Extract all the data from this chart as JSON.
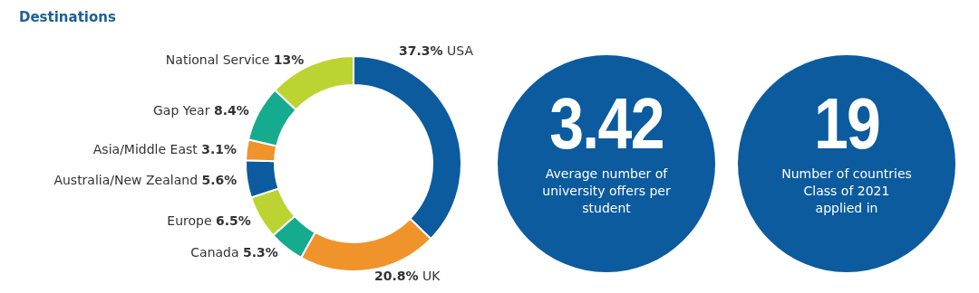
{
  "chart_data": [
    {
      "type": "donut",
      "title": "Destinations",
      "categories": [
        "USA",
        "UK",
        "Canada",
        "Europe",
        "Australia/New Zealand",
        "Asia/Middle East",
        "Gap Year",
        "National Service"
      ],
      "values": [
        37.3,
        20.8,
        5.3,
        6.5,
        5.6,
        3.1,
        8.4,
        13
      ],
      "colors": [
        "#0b5b9e",
        "#f0932b",
        "#15ab8f",
        "#bdd332",
        "#0b5b9e",
        "#f0932b",
        "#15ab8f",
        "#bdd332"
      ],
      "value_labels": [
        "37.3%",
        "20.8%",
        "5.3%",
        "6.5%",
        "5.6%",
        "3.1%",
        "8.4%",
        "13%"
      ]
    },
    {
      "type": "other",
      "title": "3.42",
      "subtitle": "Average number of university offers per student"
    },
    {
      "type": "other",
      "title": "19",
      "subtitle": "Number of countries Class of 2021 applied in"
    }
  ]
}
